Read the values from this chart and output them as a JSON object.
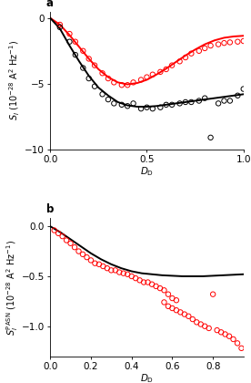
{
  "panel_a": {
    "title": "a",
    "xlabel": "$D_{\\mathrm{D}}$",
    "ylabel": "$S_I$ (10$^{-28}$ A$^2$ Hz$^{-1}$)",
    "xlim": [
      0,
      1.0
    ],
    "ylim": [
      -10,
      0.5
    ],
    "yticks": [
      0,
      -5,
      -10
    ],
    "xticks": [
      0,
      0.5,
      1
    ],
    "red_dots": [
      [
        0.05,
        -0.5
      ],
      [
        0.1,
        -1.2
      ],
      [
        0.13,
        -1.8
      ],
      [
        0.17,
        -2.5
      ],
      [
        0.2,
        -3.1
      ],
      [
        0.23,
        -3.6
      ],
      [
        0.27,
        -4.2
      ],
      [
        0.3,
        -4.6
      ],
      [
        0.33,
        -4.9
      ],
      [
        0.37,
        -5.1
      ],
      [
        0.4,
        -5.1
      ],
      [
        0.43,
        -4.9
      ],
      [
        0.47,
        -4.7
      ],
      [
        0.5,
        -4.5
      ],
      [
        0.53,
        -4.3
      ],
      [
        0.57,
        -4.1
      ],
      [
        0.6,
        -3.9
      ],
      [
        0.63,
        -3.6
      ],
      [
        0.67,
        -3.3
      ],
      [
        0.7,
        -3.0
      ],
      [
        0.73,
        -2.7
      ],
      [
        0.77,
        -2.5
      ],
      [
        0.8,
        -2.3
      ],
      [
        0.83,
        -2.1
      ],
      [
        0.87,
        -2.0
      ],
      [
        0.9,
        -1.9
      ],
      [
        0.93,
        -1.85
      ],
      [
        0.97,
        -1.8
      ],
      [
        1.0,
        -1.75
      ]
    ],
    "black_dots": [
      [
        0.05,
        -0.7
      ],
      [
        0.1,
        -1.8
      ],
      [
        0.13,
        -2.8
      ],
      [
        0.17,
        -3.8
      ],
      [
        0.2,
        -4.6
      ],
      [
        0.23,
        -5.2
      ],
      [
        0.27,
        -5.8
      ],
      [
        0.3,
        -6.2
      ],
      [
        0.33,
        -6.5
      ],
      [
        0.37,
        -6.6
      ],
      [
        0.4,
        -6.7
      ],
      [
        0.43,
        -6.5
      ],
      [
        0.47,
        -6.9
      ],
      [
        0.5,
        -6.8
      ],
      [
        0.53,
        -6.9
      ],
      [
        0.57,
        -6.8
      ],
      [
        0.6,
        -6.6
      ],
      [
        0.63,
        -6.6
      ],
      [
        0.67,
        -6.5
      ],
      [
        0.7,
        -6.4
      ],
      [
        0.73,
        -6.4
      ],
      [
        0.77,
        -6.3
      ],
      [
        0.8,
        -6.1
      ],
      [
        0.83,
        -9.1
      ],
      [
        0.87,
        -6.5
      ],
      [
        0.9,
        -6.3
      ],
      [
        0.93,
        -6.3
      ],
      [
        0.97,
        -5.9
      ],
      [
        1.0,
        -5.4
      ]
    ],
    "red_line_x": [
      0.0,
      0.05,
      0.1,
      0.15,
      0.2,
      0.25,
      0.3,
      0.35,
      0.4,
      0.45,
      0.5,
      0.55,
      0.6,
      0.65,
      0.7,
      0.75,
      0.8,
      0.85,
      0.9,
      0.95,
      1.0
    ],
    "red_line_y": [
      0.0,
      -0.5,
      -1.3,
      -2.2,
      -3.1,
      -3.9,
      -4.5,
      -4.9,
      -5.05,
      -4.95,
      -4.7,
      -4.3,
      -3.85,
      -3.35,
      -2.85,
      -2.4,
      -2.0,
      -1.7,
      -1.5,
      -1.4,
      -1.35
    ],
    "black_line_x": [
      0.0,
      0.05,
      0.1,
      0.15,
      0.2,
      0.25,
      0.3,
      0.35,
      0.4,
      0.45,
      0.5,
      0.55,
      0.6,
      0.65,
      0.7,
      0.75,
      0.8,
      0.85,
      0.9,
      0.95,
      1.0
    ],
    "black_line_y": [
      0.0,
      -0.8,
      -2.1,
      -3.3,
      -4.4,
      -5.3,
      -5.9,
      -6.4,
      -6.65,
      -6.75,
      -6.75,
      -6.7,
      -6.6,
      -6.5,
      -6.4,
      -6.3,
      -6.2,
      -6.1,
      -6.0,
      -5.9,
      -5.8
    ]
  },
  "panel_b": {
    "title": "b",
    "xlabel": "$D_{\\mathrm{D}}$",
    "ylabel": "$S_I^{\\mathrm{PASN}}$ (10$^{-28}$ A$^2$ Hz$^{-1}$)",
    "xlim": [
      0,
      0.95
    ],
    "ylim": [
      -1.3,
      0.08
    ],
    "yticks": [
      0.0,
      -0.5,
      -1.0
    ],
    "xticks": [
      0,
      0.2,
      0.4,
      0.6,
      0.8
    ],
    "red_dots": [
      [
        0.02,
        -0.04
      ],
      [
        0.04,
        -0.07
      ],
      [
        0.06,
        -0.1
      ],
      [
        0.08,
        -0.14
      ],
      [
        0.1,
        -0.17
      ],
      [
        0.12,
        -0.21
      ],
      [
        0.14,
        -0.25
      ],
      [
        0.16,
        -0.28
      ],
      [
        0.18,
        -0.31
      ],
      [
        0.2,
        -0.34
      ],
      [
        0.22,
        -0.37
      ],
      [
        0.24,
        -0.38
      ],
      [
        0.26,
        -0.4
      ],
      [
        0.28,
        -0.42
      ],
      [
        0.3,
        -0.44
      ],
      [
        0.32,
        -0.44
      ],
      [
        0.34,
        -0.46
      ],
      [
        0.36,
        -0.47
      ],
      [
        0.38,
        -0.48
      ],
      [
        0.4,
        -0.5
      ],
      [
        0.42,
        -0.52
      ],
      [
        0.44,
        -0.54
      ],
      [
        0.46,
        -0.56
      ],
      [
        0.48,
        -0.56
      ],
      [
        0.5,
        -0.58
      ],
      [
        0.52,
        -0.6
      ],
      [
        0.54,
        -0.62
      ],
      [
        0.56,
        -0.64
      ],
      [
        0.58,
        -0.68
      ],
      [
        0.6,
        -0.72
      ],
      [
        0.62,
        -0.74
      ],
      [
        0.56,
        -0.76
      ],
      [
        0.58,
        -0.8
      ],
      [
        0.6,
        -0.82
      ],
      [
        0.62,
        -0.84
      ],
      [
        0.64,
        -0.86
      ],
      [
        0.66,
        -0.88
      ],
      [
        0.68,
        -0.9
      ],
      [
        0.7,
        -0.93
      ],
      [
        0.72,
        -0.96
      ],
      [
        0.74,
        -0.98
      ],
      [
        0.76,
        -1.0
      ],
      [
        0.78,
        -1.02
      ],
      [
        0.8,
        -0.68
      ],
      [
        0.82,
        -1.04
      ],
      [
        0.84,
        -1.06
      ],
      [
        0.86,
        -1.08
      ],
      [
        0.88,
        -1.1
      ],
      [
        0.9,
        -1.13
      ],
      [
        0.92,
        -1.17
      ],
      [
        0.94,
        -1.22
      ]
    ],
    "black_line_x": [
      0.0,
      0.05,
      0.1,
      0.15,
      0.2,
      0.25,
      0.3,
      0.35,
      0.4,
      0.45,
      0.5,
      0.55,
      0.6,
      0.65,
      0.7,
      0.75,
      0.8,
      0.85,
      0.9,
      0.95
    ],
    "black_line_y": [
      0.0,
      -0.06,
      -0.13,
      -0.2,
      -0.27,
      -0.33,
      -0.38,
      -0.42,
      -0.45,
      -0.47,
      -0.48,
      -0.49,
      -0.495,
      -0.5,
      -0.5,
      -0.5,
      -0.495,
      -0.49,
      -0.485,
      -0.48
    ]
  },
  "dot_size": 15,
  "line_width": 1.4,
  "font_size": 7.5
}
